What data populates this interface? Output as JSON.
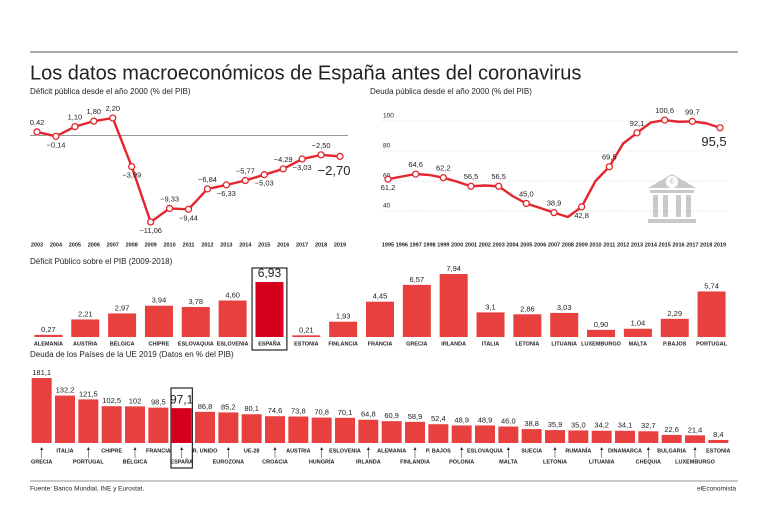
{
  "header": {
    "title": "Los datos macroeconómicos de España antes del coronavirus"
  },
  "footer": {
    "source": "Fuente: Banco Mundial, INE y Eurostat.",
    "brand": "elEconomista"
  },
  "chart_data": [
    {
      "type": "line",
      "subtitle": "Déficit pública desde el año 2000 (% del PIB)",
      "color": "#e3262e",
      "categories": [
        "2003",
        "2004",
        "2005",
        "2006",
        "2007",
        "2008",
        "2009",
        "2010",
        "2011",
        "2012",
        "2013",
        "2014",
        "2015",
        "2016",
        "2017",
        "2018",
        "2019"
      ],
      "values": [
        0.42,
        -0.14,
        1.1,
        1.8,
        2.2,
        -3.99,
        -11.06,
        -9.33,
        -9.44,
        -6.84,
        -6.33,
        -5.77,
        -5.03,
        -4.29,
        -3.03,
        -2.5,
        -2.7
      ],
      "value_labels": [
        "0,42",
        "−0,14",
        "1,10",
        "1,80",
        "2,20",
        "−3,99",
        "−11,06",
        "−9,33",
        "−9,44",
        "−6,84",
        "−6,33",
        "−5,77",
        "−5,03",
        "−4,29",
        "−3,03",
        "−2,50",
        "−2,70"
      ]
    },
    {
      "type": "line",
      "subtitle": "Deuda pública desde el año 2000 (% del PIB)",
      "color": "#e3262e",
      "categories": [
        "1995",
        "1996",
        "1997",
        "1998",
        "1999",
        "2000",
        "2001",
        "2002",
        "2003",
        "2004",
        "2005",
        "2006",
        "2007",
        "2008",
        "2009",
        "2010",
        "2011",
        "2012",
        "2013",
        "2014",
        "2015",
        "2016",
        "2017",
        "2018",
        "2019"
      ],
      "values": [
        61.2,
        63.0,
        64.6,
        64.0,
        62.2,
        59.5,
        56.5,
        57.0,
        56.5,
        50.0,
        45.0,
        42.0,
        38.9,
        36.0,
        42.8,
        60.0,
        69.5,
        85.0,
        92.1,
        99.0,
        100.6,
        99.5,
        99.7,
        98.5,
        95.5
      ],
      "value_labels": [
        "61,2",
        null,
        "64,6",
        null,
        "62,2",
        null,
        "56,5",
        null,
        "56,5",
        null,
        "45,0",
        null,
        "38,9",
        null,
        "42,8",
        null,
        "69,5",
        null,
        "92,1",
        null,
        "100,6",
        null,
        "99,7",
        null,
        "95,5"
      ],
      "ylim": [
        30,
        110
      ],
      "yticks": [
        40,
        60,
        80,
        100
      ],
      "grid": true
    },
    {
      "type": "bar",
      "subtitle": "Déficit Público sobre el PIB (2009-2018)",
      "color": "#e8403f",
      "highlight_color": "#d7001c",
      "highlight_index": 6,
      "categories": [
        "ALEMANIA",
        "AUSTRIA",
        "BÉLGICA",
        "CHIPRE",
        "ESLOVAQUIA",
        "ESLOVENIA",
        "ESPAÑA",
        "ESTONIA",
        "FINLANCIA",
        "FRANCIA",
        "GRECIA",
        "IRLANDA",
        "ITALIA",
        "LETONIA",
        "LITUANIA",
        "LUXEMBURGO",
        "MALTA",
        "P.BAJOS",
        "PORTUGAL"
      ],
      "values": [
        0.27,
        2.21,
        2.97,
        3.94,
        3.78,
        4.6,
        6.93,
        0.21,
        1.93,
        4.45,
        6.57,
        7.94,
        3.1,
        2.86,
        3.03,
        0.9,
        1.04,
        2.29,
        5.74
      ],
      "value_labels": [
        "0,27",
        "2,21",
        "2,97",
        "3,94",
        "3,78",
        "4,60",
        "6,93",
        "0,21",
        "1,93",
        "4,45",
        "6,57",
        "7,94",
        "3,1",
        "2,86",
        "3,03",
        "0,90",
        "1,04",
        "2,29",
        "5,74"
      ]
    },
    {
      "type": "bar",
      "subtitle": "Deuda de los Países de la UE 2019 (Datos en % del PIB)",
      "color": "#e8403f",
      "highlight_color": "#d7001c",
      "highlight_index": 6,
      "categories": [
        "GRECIA",
        "ITALIA",
        "PORTUGAL",
        "CHIPRE",
        "BÉLGICA",
        "FRANCIA",
        "ESPAÑA",
        "R. UNIDO",
        "EUROZONA",
        "UE-28",
        "CROACIA",
        "AUSTRIA",
        "HUNGRÍA",
        "ESLOVENIA",
        "IRLANDA",
        "ALEMANIA",
        "FINLANDIA",
        "P. BAJOS",
        "POLONIA",
        "ESLOVAQUIA",
        "MALTA",
        "SUECIA",
        "LETONIA",
        "RUMANÍA",
        "LITUANIA",
        "DINAMARCA",
        "CHEQUIA",
        "BULGARIA",
        "LUXEMBURGO",
        "ESTONIA"
      ],
      "values": [
        181.1,
        132.2,
        121.5,
        102.5,
        102,
        98.5,
        97.1,
        86.8,
        85.2,
        80.1,
        74.6,
        73.8,
        70.8,
        70.1,
        64.8,
        60.9,
        58.9,
        52.4,
        48.9,
        48.9,
        46.0,
        38.8,
        35.9,
        35.0,
        34.2,
        34.1,
        32.7,
        22.6,
        21.4,
        8.4
      ],
      "value_labels": [
        "181,1",
        "132,2",
        "121,5",
        "102,5",
        "102",
        "98,5",
        "97,1",
        "86,8",
        "85,2",
        "80,1",
        "74,6",
        "73,8",
        "70,8",
        "70,1",
        "64,8",
        "60,9",
        "58,9",
        "52,4",
        "48,9",
        "48,9",
        "46,0",
        "38,8",
        "35,9",
        "35,0",
        "34,2",
        "34,1",
        "32,7",
        "22,6",
        "21,4",
        "8,4"
      ]
    }
  ]
}
